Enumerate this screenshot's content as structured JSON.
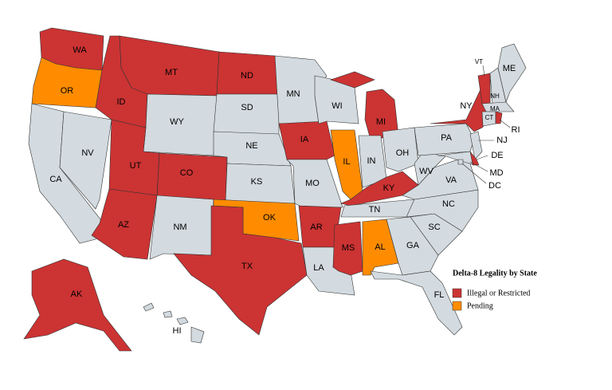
{
  "legend": {
    "title": "Delta-8 Legality by State",
    "items": [
      {
        "label": "Illegal or Restricted",
        "color": "#cc3333"
      },
      {
        "label": "Pending",
        "color": "#ff8c00"
      }
    ]
  },
  "default_color": "#d3dbe0",
  "states": [
    {
      "label": "WA",
      "status": 0
    },
    {
      "label": "OR",
      "status": 1
    },
    {
      "label": "CA",
      "status": null
    },
    {
      "label": "NV",
      "status": null
    },
    {
      "label": "ID",
      "status": 0
    },
    {
      "label": "MT",
      "status": 0
    },
    {
      "label": "WY",
      "status": null
    },
    {
      "label": "UT",
      "status": 0
    },
    {
      "label": "AZ",
      "status": 0
    },
    {
      "label": "CO",
      "status": 0
    },
    {
      "label": "NM",
      "status": null
    },
    {
      "label": "ND",
      "status": 0
    },
    {
      "label": "SD",
      "status": null
    },
    {
      "label": "NE",
      "status": null
    },
    {
      "label": "KS",
      "status": null
    },
    {
      "label": "OK",
      "status": 1
    },
    {
      "label": "TX",
      "status": 0
    },
    {
      "label": "MN",
      "status": null
    },
    {
      "label": "IA",
      "status": 0
    },
    {
      "label": "MO",
      "status": null
    },
    {
      "label": "AR",
      "status": 0
    },
    {
      "label": "LA",
      "status": null
    },
    {
      "label": "WI",
      "status": null
    },
    {
      "label": "IL",
      "status": 1
    },
    {
      "label": "MI",
      "status": 0
    },
    {
      "label": "IN",
      "status": null
    },
    {
      "label": "OH",
      "status": null
    },
    {
      "label": "KY",
      "status": 0
    },
    {
      "label": "TN",
      "status": null
    },
    {
      "label": "MS",
      "status": 0
    },
    {
      "label": "AL",
      "status": 1
    },
    {
      "label": "GA",
      "status": null
    },
    {
      "label": "FL",
      "status": null
    },
    {
      "label": "SC",
      "status": null
    },
    {
      "label": "NC",
      "status": null
    },
    {
      "label": "VA",
      "status": null
    },
    {
      "label": "WV",
      "status": null
    },
    {
      "label": "PA",
      "status": null
    },
    {
      "label": "NY",
      "status": 0
    },
    {
      "label": "NJ",
      "status": null
    },
    {
      "label": "DE",
      "status": 0
    },
    {
      "label": "MD",
      "status": null
    },
    {
      "label": "DC",
      "status": null
    },
    {
      "label": "VT",
      "status": 0
    },
    {
      "label": "NH",
      "status": null
    },
    {
      "label": "ME",
      "status": null
    },
    {
      "label": "MA",
      "status": null
    },
    {
      "label": "CT",
      "status": null
    },
    {
      "label": "RI",
      "status": 0
    },
    {
      "label": "AK",
      "status": 0
    },
    {
      "label": "HI",
      "status": null
    }
  ]
}
